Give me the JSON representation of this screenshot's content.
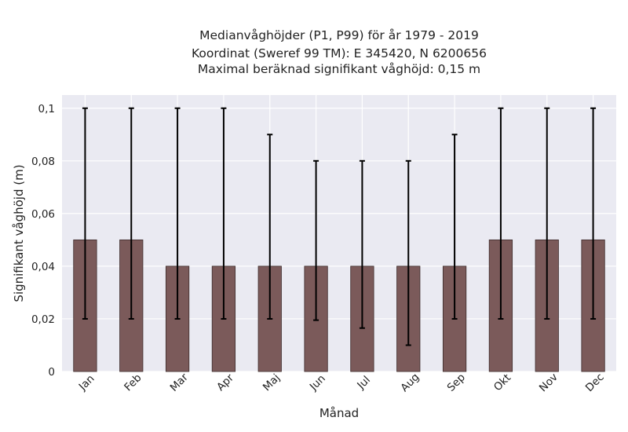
{
  "chart_data": {
    "type": "bar",
    "title_lines": [
      "Medianvåghöjder (P1, P99) för år 1979 - 2019",
      "Koordinat (Sweref 99 TM): E 345420, N 6200656",
      "Maximal beräknad signifikant våghöjd: 0,15 m"
    ],
    "xlabel": "Månad",
    "ylabel": "Signifikant våghöjd (m)",
    "categories": [
      "Jan",
      "Feb",
      "Mar",
      "Apr",
      "Maj",
      "Jun",
      "Jul",
      "Aug",
      "Sep",
      "Okt",
      "Nov",
      "Dec"
    ],
    "values": [
      0.05,
      0.05,
      0.04,
      0.04,
      0.04,
      0.04,
      0.04,
      0.04,
      0.04,
      0.05,
      0.05,
      0.05
    ],
    "p1": [
      0.02,
      0.02,
      0.02,
      0.02,
      0.02,
      0.0195,
      0.0165,
      0.01,
      0.02,
      0.02,
      0.02,
      0.02
    ],
    "p99": [
      0.1,
      0.1,
      0.1,
      0.1,
      0.09,
      0.08,
      0.08,
      0.08,
      0.09,
      0.1,
      0.1,
      0.1
    ],
    "ylim": [
      0,
      0.105
    ],
    "yticks": [
      0,
      0.02,
      0.04,
      0.06,
      0.08,
      0.1
    ],
    "ytick_labels": [
      "0",
      "0,02",
      "0,04",
      "0,06",
      "0,08",
      "0,1"
    ],
    "grid": true,
    "colors": {
      "bar": "#7b5a5a",
      "bar_edge": "#3d2c2c",
      "errorbar": "#000000",
      "plot_background": "#eaeaf2",
      "grid": "#ffffff"
    }
  }
}
